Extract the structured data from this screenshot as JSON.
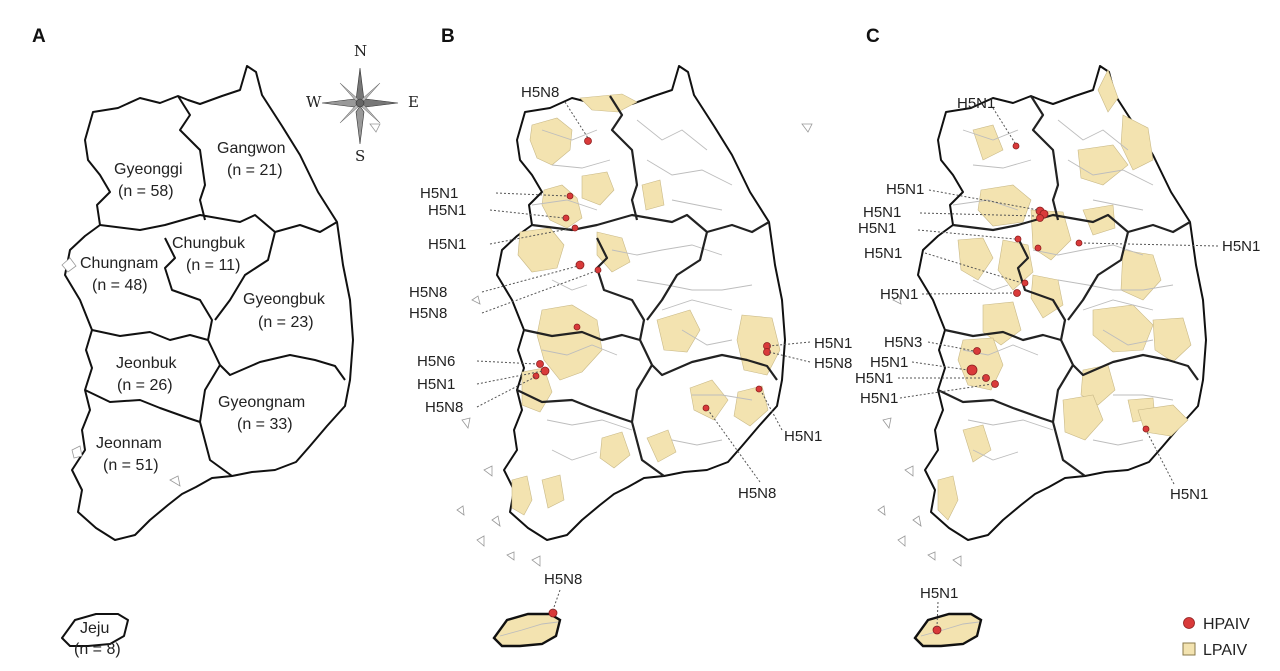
{
  "panels": [
    "A",
    "B",
    "C"
  ],
  "compass": {
    "north": "N",
    "south": "S",
    "east": "E",
    "west": "W"
  },
  "regions": [
    {
      "name": "Gyeonggi",
      "count": "(n = 58)"
    },
    {
      "name": "Gangwon",
      "count": "(n = 21)"
    },
    {
      "name": "Chungnam",
      "count": "(n = 48)"
    },
    {
      "name": "Chungbuk",
      "count": "(n = 11)"
    },
    {
      "name": "Gyeongbuk",
      "count": "(n = 23)"
    },
    {
      "name": "Jeonbuk",
      "count": "(n = 26)"
    },
    {
      "name": "Gyeongnam",
      "count": "(n = 33)"
    },
    {
      "name": "Jeonnam",
      "count": "(n = 51)"
    },
    {
      "name": "Jeju",
      "count": "(n = 8)"
    }
  ],
  "panel_b_annotations": [
    "H5N8",
    "H5N1",
    "H5N1",
    "H5N1",
    "H5N8",
    "H5N8",
    "H5N6",
    "H5N1",
    "H5N8",
    "H5N1",
    "H5N8",
    "H5N1",
    "H5N8",
    "H5N8"
  ],
  "panel_c_annotations": [
    "H5N1",
    "H5N1",
    "H5N1",
    "H5N1",
    "H5N1",
    "H5N1",
    "H5N1",
    "H5N3",
    "H5N1",
    "H5N1",
    "H5N1",
    "H5N1",
    "H5N1"
  ],
  "legend": {
    "hpaiv": {
      "label": "HPAIV",
      "color": "#d93a3a"
    },
    "lpaiv": {
      "label": "LPAIV",
      "color": "#f3e3b0"
    }
  }
}
